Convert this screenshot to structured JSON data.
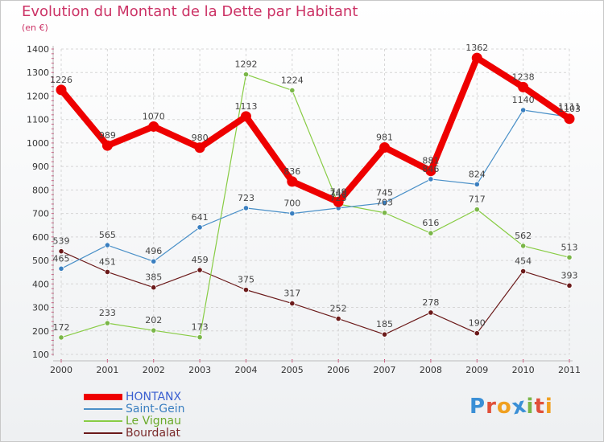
{
  "title": "Evolution du Montant de la Dette par Habitant",
  "unit_label": "(en €)",
  "brand": {
    "name": "Proxiti",
    "letter_colors": [
      "#3a8fd6",
      "#e0503a",
      "#f0a020",
      "#3a8fd6",
      "#7ab648",
      "#e0503a",
      "#f0a020"
    ]
  },
  "chart_data": {
    "type": "line",
    "title": "Evolution du Montant de la Dette par Habitant",
    "ylabel": "(en €)",
    "xlabel": "",
    "x": [
      "2000",
      "2001",
      "2002",
      "2003",
      "2004",
      "2005",
      "2006",
      "2007",
      "2008",
      "2009",
      "2010",
      "2011"
    ],
    "ylim": [
      100,
      1400
    ],
    "yticks": [
      100,
      200,
      300,
      400,
      500,
      600,
      700,
      800,
      900,
      1000,
      1100,
      1200,
      1300,
      1400
    ],
    "grid": true,
    "legend_position": "bottom-left",
    "series": [
      {
        "name": "HONTANX",
        "color": "#ee0000",
        "marker_color": "#ee0000",
        "values": [
          1226,
          989,
          1070,
          980,
          1113,
          836,
          749,
          981,
          881,
          1362,
          1238,
          1103
        ],
        "labels": [
          "1226",
          "989",
          "1070",
          "980",
          "1113",
          "836",
          "749",
          "981",
          "881",
          "1362",
          "1238",
          "1103"
        ]
      },
      {
        "name": "Saint-Gein",
        "color": "#4a90c8",
        "marker_color": "#3a7fc0",
        "values": [
          465,
          565,
          496,
          641,
          723,
          700,
          723,
          745,
          846,
          824,
          1140,
          1111
        ],
        "labels": [
          "465",
          "565",
          "496",
          "641",
          "723",
          "700",
          "723",
          "745",
          "846",
          "824",
          "1140",
          "1111"
        ]
      },
      {
        "name": "Le Vignau",
        "color": "#88cc44",
        "marker_color": "#7ab648",
        "values": [
          172,
          233,
          202,
          173,
          1292,
          1224,
          740,
          703,
          616,
          717,
          562,
          513
        ],
        "labels": [
          "172",
          "233",
          "202",
          "173",
          "1292",
          "1224",
          "740",
          "703",
          "616",
          "717",
          "562",
          "513"
        ]
      },
      {
        "name": "Bourdalat",
        "color": "#6b1a1a",
        "marker_color": "#6b1a1a",
        "values": [
          539,
          451,
          385,
          459,
          375,
          317,
          252,
          185,
          278,
          190,
          454,
          393
        ],
        "labels": [
          "539",
          "451",
          "385",
          "459",
          "375",
          "317",
          "252",
          "185",
          "278",
          "190",
          "454",
          "393"
        ]
      }
    ]
  }
}
